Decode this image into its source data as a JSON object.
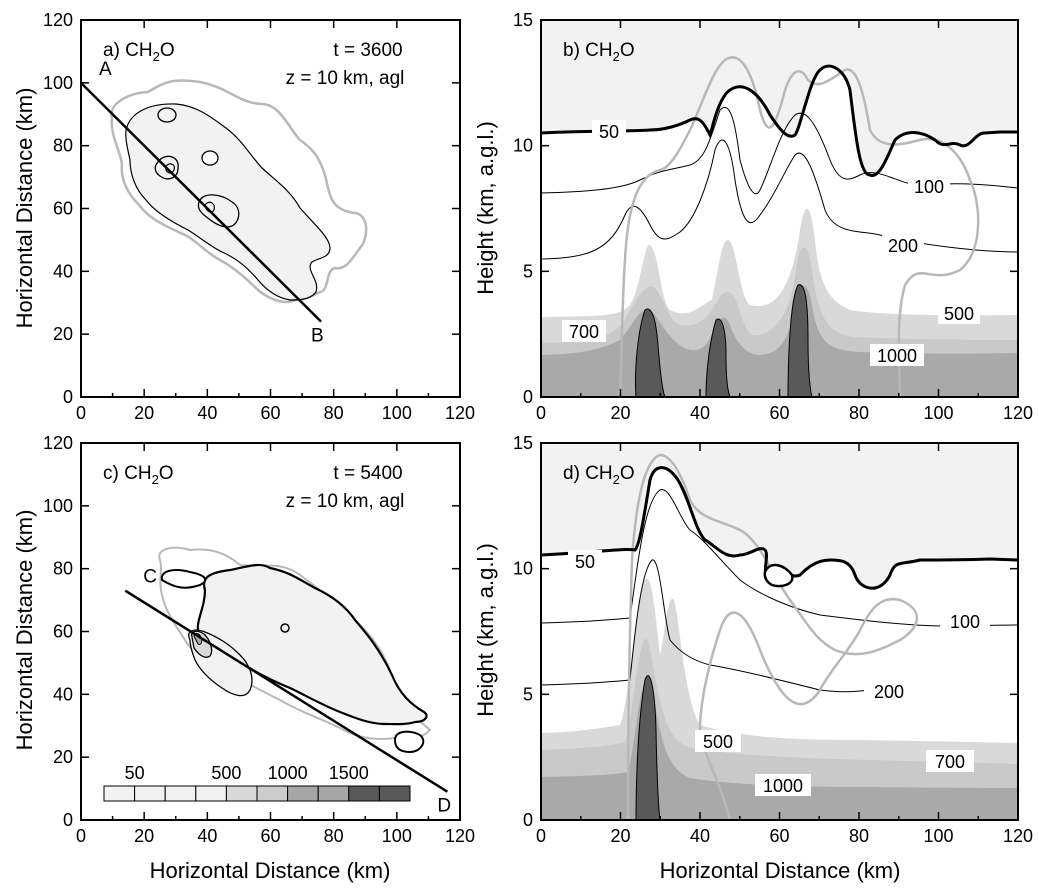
{
  "chart_data": [
    {
      "id": "a",
      "type": "contour",
      "panel_label": "a) CH",
      "panel_sub": "2",
      "panel_tail": "O",
      "time_text": "t = 3600",
      "height_text": "z = 10 km, agl",
      "xlabel": "",
      "ylabel": "Horizontal Distance (km)",
      "xlim": [
        0,
        120
      ],
      "ylim": [
        0,
        120
      ],
      "xticks": [
        "0",
        "20",
        "40",
        "60",
        "80",
        "100",
        "120"
      ],
      "yticks": [
        "0",
        "20",
        "40",
        "60",
        "80",
        "100",
        "120"
      ],
      "section_line": {
        "start": [
          0,
          100
        ],
        "end": [
          76,
          24
        ],
        "start_label": "A",
        "end_label": "B"
      }
    },
    {
      "id": "b",
      "type": "contour",
      "panel_label": "b) CH",
      "panel_sub": "2",
      "panel_tail": "O",
      "xlabel": "",
      "ylabel": "Height (km, a.g.l.)",
      "xlim": [
        0,
        120
      ],
      "ylim": [
        0,
        15
      ],
      "xticks": [
        "0",
        "20",
        "40",
        "60",
        "80",
        "100",
        "120"
      ],
      "yticks": [
        "0",
        "5",
        "10",
        "15"
      ],
      "contour_labels": [
        "50",
        "100",
        "200",
        "500",
        "700",
        "1000"
      ]
    },
    {
      "id": "c",
      "type": "contour",
      "panel_label": "c) CH",
      "panel_sub": "2",
      "panel_tail": "O",
      "time_text": "t = 5400",
      "height_text": "z = 10 km, agl",
      "xlabel": "Horizontal Distance (km)",
      "ylabel": "Horizontal Distance (km)",
      "xlim": [
        0,
        120
      ],
      "ylim": [
        0,
        120
      ],
      "xticks": [
        "0",
        "20",
        "40",
        "60",
        "80",
        "100",
        "120"
      ],
      "yticks": [
        "0",
        "20",
        "40",
        "60",
        "80",
        "100",
        "120"
      ],
      "section_line": {
        "start": [
          14,
          73
        ],
        "end": [
          116,
          9
        ],
        "start_label": "C",
        "end_label": "D"
      },
      "colorbar": {
        "labels": [
          "50",
          "500",
          "1000",
          "1500"
        ],
        "colors": [
          "#f2f2f2",
          "#f2f2f2",
          "#f2f2f2",
          "#f2f2f2",
          "#d9d9d9",
          "#cccccc",
          "#a6a6a6",
          "#a6a6a6",
          "#595959",
          "#595959"
        ]
      }
    },
    {
      "id": "d",
      "type": "contour",
      "panel_label": "d) CH",
      "panel_sub": "2",
      "panel_tail": "O",
      "xlabel": "Horizontal Distance (km)",
      "ylabel": "Height (km, a.g.l.)",
      "xlim": [
        0,
        120
      ],
      "ylim": [
        0,
        15
      ],
      "xticks": [
        "0",
        "20",
        "40",
        "60",
        "80",
        "100",
        "120"
      ],
      "yticks": [
        "0",
        "5",
        "10",
        "15"
      ],
      "contour_labels": [
        "50",
        "100",
        "200",
        "500",
        "700",
        "1000"
      ]
    }
  ],
  "colors": {
    "fill_50": "#f2f2f2",
    "fill_500": "#d9d9d9",
    "fill_700": "#c9c9c9",
    "fill_1000": "#a9a9a9",
    "fill_1500": "#595959",
    "gray_line": "#b8b8b8"
  }
}
